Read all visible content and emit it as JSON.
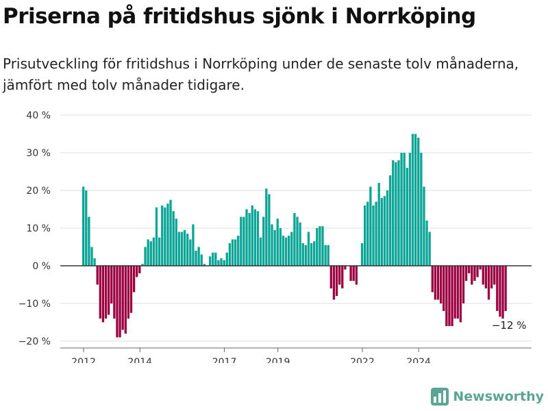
{
  "title": "Priserna på fritidshus sjönk i Norrköping",
  "subtitle": "Prisutveckling för fritidshus i Norrköping under de senaste tolv månaderna, jämfört med tolv månader tidigare.",
  "brand": {
    "name": "Newsworthy",
    "color": "#5aa593",
    "icon": "chart-logo-icon"
  },
  "colors": {
    "positive": "#0aa596",
    "negative": "#9b0040",
    "grid": "#dddddd",
    "zero": "#333333"
  },
  "chart_data": {
    "type": "bar",
    "title": "Priserna på fritidshus sjönk i Norrköping",
    "xlabel": "",
    "ylabel": "",
    "ylim": [
      -20,
      40
    ],
    "yticks": [
      40,
      30,
      20,
      10,
      0,
      -10,
      -20
    ],
    "ytick_labels": [
      "40 %",
      "30 %",
      "20 %",
      "10 %",
      "0 %",
      "−10 %",
      "−20 %"
    ],
    "xtick_labels": [
      "2012",
      "2014",
      "2017",
      "2019",
      "2022",
      "2024"
    ],
    "x_index_of_xticks": [
      0,
      20,
      50,
      69,
      99,
      119
    ],
    "grid": true,
    "annotation": "−12 %",
    "values": [
      21,
      20,
      13,
      5,
      2,
      -5,
      -14,
      -15,
      -14,
      -13,
      -10,
      -14,
      -19,
      -19,
      -17,
      -18,
      -14,
      -12.5,
      -7,
      -3,
      -2,
      0.5,
      5,
      7,
      6.5,
      7.5,
      15.5,
      7.5,
      16,
      15.5,
      16.5,
      17.5,
      14.5,
      12.5,
      9,
      9,
      9.5,
      8.5,
      7,
      11,
      4,
      5,
      3,
      0.5,
      0,
      2.5,
      3.5,
      3.5,
      1.5,
      2,
      1.5,
      3.5,
      6,
      7,
      7,
      8,
      13,
      13,
      15,
      14,
      16,
      15,
      14.5,
      7.5,
      13,
      20.5,
      19,
      11,
      9.5,
      12.5,
      10,
      8,
      7.5,
      8,
      9,
      14,
      13,
      11.5,
      6,
      5.5,
      9,
      6,
      6.5,
      10,
      10.5,
      10.5,
      5.5,
      5.5,
      -6,
      -9,
      -8,
      -5,
      -6,
      -1,
      0,
      -4,
      -4,
      -5,
      0,
      6,
      16,
      17,
      21,
      16,
      17,
      22,
      18,
      18.5,
      20,
      24,
      28,
      27.5,
      28,
      30,
      30,
      26,
      30,
      35,
      35,
      34,
      30,
      21,
      12,
      9,
      -7,
      -9,
      -9,
      -10,
      -12,
      -16,
      -16,
      -16,
      -14,
      -14,
      -15,
      -10,
      -4,
      -2,
      -5,
      -4,
      -3,
      -1,
      -5,
      -6,
      -9,
      -6,
      -5,
      -12,
      -13.5,
      -14,
      -12
    ]
  }
}
